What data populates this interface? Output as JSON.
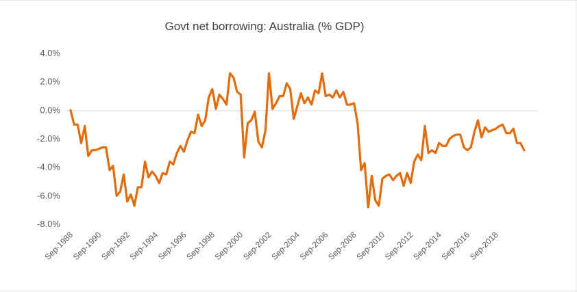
{
  "chart_data": {
    "type": "line",
    "title": "Govt net borrowing: Australia (% GDP)",
    "xlabel": "",
    "ylabel": "",
    "ylim": [
      -8,
      4
    ],
    "y_ticks": [
      "4.0%",
      "2.0%",
      "0.0%",
      "-2.0%",
      "-4.0%",
      "-6.0%",
      "-8.0%"
    ],
    "x_ticks": [
      "Sep-1988",
      "Sep-1990",
      "Sep-1992",
      "Sep-1994",
      "Sep-1996",
      "Sep-1998",
      "Sep-2000",
      "Sep-2002",
      "Sep-2004",
      "Sep-2006",
      "Sep-2008",
      "Sep-2010",
      "Sep-2012",
      "Sep-2014",
      "Sep-2016",
      "Sep-2018"
    ],
    "x_start": "Sep-1988",
    "x_frequency": "quarterly",
    "grid": false,
    "legend": "none",
    "line_color": "#e36c0a",
    "series": [
      {
        "values": [
          0.0,
          -1.0,
          -1.0,
          -2.3,
          -1.1,
          -3.2,
          -2.8,
          -2.8,
          -2.7,
          -2.6,
          -2.6,
          -4.2,
          -3.9,
          -6.0,
          -5.7,
          -4.5,
          -6.4,
          -5.9,
          -6.7,
          -5.4,
          -5.4,
          -3.6,
          -4.7,
          -4.3,
          -4.6,
          -5.1,
          -4.4,
          -4.5,
          -3.6,
          -3.8,
          -3.0,
          -2.5,
          -2.9,
          -2.1,
          -1.5,
          -1.6,
          -0.3,
          -1.1,
          -0.7,
          0.9,
          1.5,
          0.1,
          1.1,
          0.8,
          0.4,
          2.6,
          2.3,
          1.3,
          1.1,
          -3.3,
          -0.9,
          -0.7,
          -0.1,
          -2.2,
          -2.6,
          -1.4,
          2.6,
          0.1,
          0.5,
          1.0,
          1.0,
          1.9,
          1.5,
          -0.6,
          0.3,
          1.2,
          0.5,
          0.9,
          0.4,
          1.4,
          1.2,
          2.6,
          1.0,
          1.1,
          0.9,
          1.4,
          0.9,
          1.3,
          0.4,
          0.4,
          0.5,
          -0.9,
          -4.2,
          -3.7,
          -6.8,
          -4.6,
          -6.3,
          -6.7,
          -4.8,
          -4.6,
          -4.5,
          -4.9,
          -4.6,
          -4.4,
          -5.3,
          -4.4,
          -5.1,
          -3.6,
          -3.1,
          -3.5,
          -1.1,
          -3.0,
          -2.8,
          -3.0,
          -2.3,
          -2.5,
          -2.5,
          -2.0,
          -1.8,
          -1.7,
          -1.7,
          -2.6,
          -2.8,
          -2.6,
          -1.5,
          -0.7,
          -1.9,
          -1.2,
          -1.5,
          -1.4,
          -1.3,
          -1.1,
          -1.0,
          -1.6,
          -1.6,
          -1.3,
          -2.3,
          -2.3,
          -2.8
        ]
      }
    ]
  }
}
